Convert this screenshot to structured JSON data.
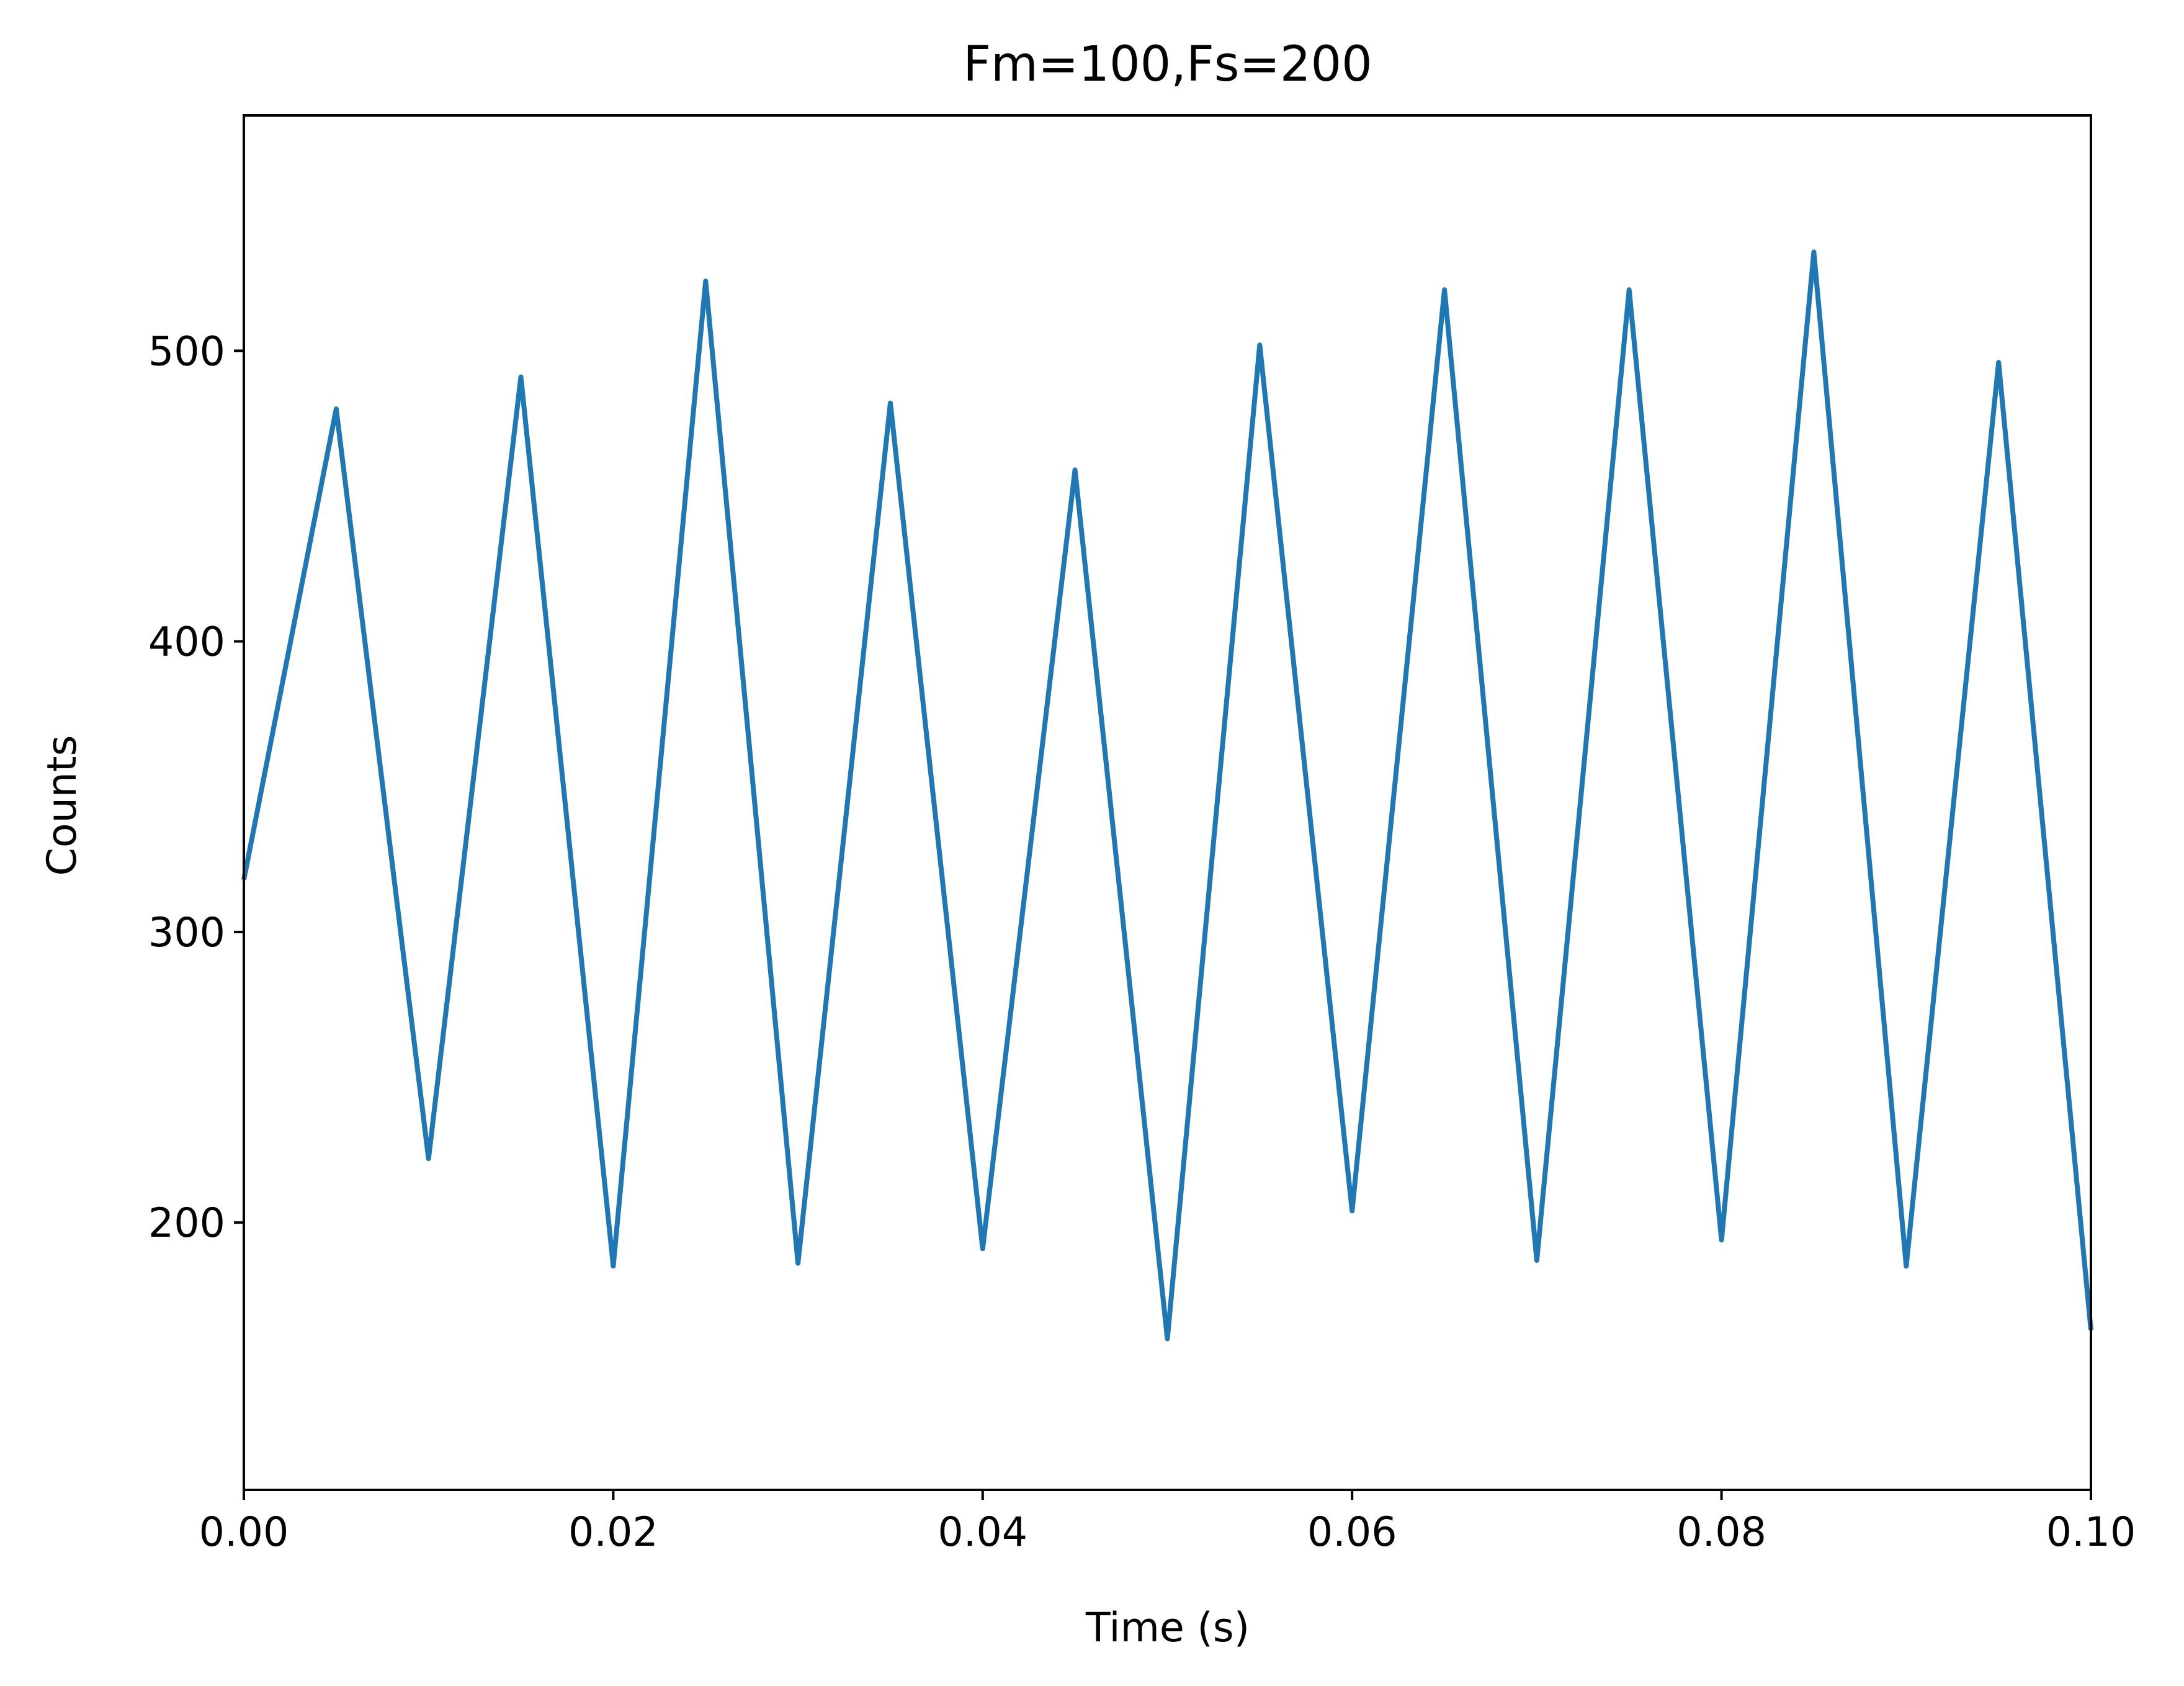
{
  "chart_data": {
    "type": "line",
    "title": "Fm=100,Fs=200",
    "xlabel": "Time (s)",
    "ylabel": "Counts",
    "xlim": [
      0.0,
      0.1
    ],
    "ylim": [
      108,
      581
    ],
    "xticks": [
      0.0,
      0.02,
      0.04,
      0.06,
      0.08,
      0.1
    ],
    "xtick_labels": [
      "0.00",
      "0.02",
      "0.04",
      "0.06",
      "0.08",
      "0.10"
    ],
    "yticks": [
      200,
      300,
      400,
      500
    ],
    "ytick_labels": [
      "200",
      "300",
      "400",
      "500"
    ],
    "grid": false,
    "legend": "none",
    "series": [
      {
        "color": "#1f77b4",
        "x": [
          0.0,
          0.005,
          0.01,
          0.015,
          0.02,
          0.025,
          0.03,
          0.035,
          0.04,
          0.045,
          0.05,
          0.055,
          0.06,
          0.065,
          0.07,
          0.075,
          0.08,
          0.085,
          0.09,
          0.095,
          0.1
        ],
        "y": [
          318,
          480,
          222,
          491,
          185,
          524,
          186,
          482,
          191,
          459,
          160,
          502,
          204,
          521,
          187,
          521,
          194,
          534,
          185,
          496,
          163
        ]
      }
    ]
  }
}
